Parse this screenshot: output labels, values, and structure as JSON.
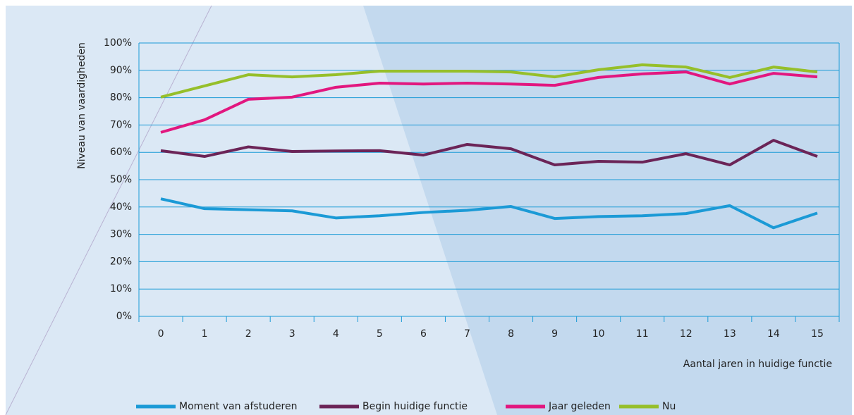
{
  "chart_data": {
    "type": "line",
    "categories": [
      "0",
      "1",
      "2",
      "3",
      "4",
      "5",
      "6",
      "7",
      "8",
      "9",
      "10",
      "11",
      "12",
      "13",
      "14",
      "15"
    ],
    "x_label": "Aantal jaren in huidige functie",
    "y_label": "Niveau van vaardigheden",
    "ylim": [
      0,
      100
    ],
    "yticks": [
      {
        "value": 0,
        "label": "0%"
      },
      {
        "value": 10,
        "label": "10%"
      },
      {
        "value": 20,
        "label": "20%"
      },
      {
        "value": 30,
        "label": "30%"
      },
      {
        "value": 40,
        "label": "40%"
      },
      {
        "value": 50,
        "label": "50%"
      },
      {
        "value": 60,
        "label": "60%"
      },
      {
        "value": 70,
        "label": "70%"
      },
      {
        "value": 80,
        "label": "80%"
      },
      {
        "value": 90,
        "label": "90%"
      },
      {
        "value": 100,
        "label": "100%"
      }
    ],
    "grid": true,
    "legend": "bottom",
    "series": [
      {
        "name": "Moment van afstuderen",
        "color": "#1b9ad6",
        "values": [
          43,
          39.4,
          39,
          38.6,
          36,
          36.8,
          38,
          38.8,
          40.2,
          35.8,
          36.5,
          36.8,
          37.6,
          40.5,
          32.4,
          37.8
        ]
      },
      {
        "name": "Begin huidige functie",
        "color": "#6b2457",
        "values": [
          60.6,
          58.5,
          62,
          60.3,
          60.5,
          60.6,
          59,
          62.9,
          61.3,
          55.4,
          56.7,
          56.4,
          59.5,
          55.4,
          64.4,
          58.5
        ]
      },
      {
        "name": "Jaar geleden",
        "color": "#e2177f",
        "values": [
          67.3,
          71.9,
          79.4,
          80.2,
          83.8,
          85.3,
          85,
          85.3,
          85,
          84.5,
          87.4,
          88.7,
          89.4,
          85,
          88.9,
          87.6
        ]
      },
      {
        "name": "Nu",
        "color": "#96bf2a",
        "values": [
          80.2,
          84.3,
          88.4,
          87.6,
          88.4,
          89.7,
          89.7,
          89.7,
          89.4,
          87.6,
          90.2,
          92,
          91.2,
          87.4,
          91.2,
          89.4
        ]
      }
    ]
  }
}
